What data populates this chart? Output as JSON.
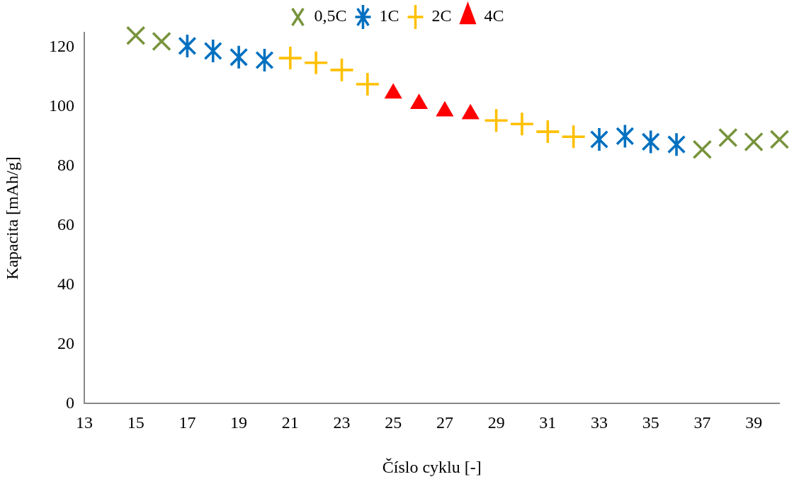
{
  "chart_data": {
    "type": "scatter",
    "xlabel": "Číslo cyklu [-]",
    "ylabel": "Kapacita [mAh/g]",
    "xlim": [
      13,
      40
    ],
    "xticks": [
      13,
      15,
      17,
      19,
      21,
      23,
      25,
      27,
      29,
      31,
      33,
      35,
      37,
      39
    ],
    "ylim": [
      0,
      125
    ],
    "yticks": [
      0,
      20,
      40,
      60,
      80,
      100,
      120
    ],
    "grid": false,
    "legend": "top",
    "series": [
      {
        "name": "0,5C",
        "color": "#77933c",
        "marker": "cross",
        "x": [
          15,
          16,
          37,
          38,
          39,
          40
        ],
        "values": [
          124,
          122,
          85.6,
          89.6,
          88.2,
          89
        ]
      },
      {
        "name": "1C",
        "color": "#0070c0",
        "marker": "star",
        "x": [
          17,
          18,
          19,
          20,
          33,
          34,
          35,
          36
        ],
        "values": [
          120.5,
          118.8,
          116.7,
          115.7,
          89,
          90.1,
          88.2,
          87.3
        ]
      },
      {
        "name": "2C",
        "color": "#ffc000",
        "marker": "plus",
        "x": [
          21,
          22,
          23,
          24,
          29,
          30,
          31,
          32
        ],
        "values": [
          116.4,
          114.8,
          112.4,
          107.6,
          95.4,
          94.2,
          91.6,
          89.9
        ]
      },
      {
        "name": "4C",
        "color": "#ff0000",
        "marker": "triangle",
        "x": [
          25,
          26,
          27,
          28
        ],
        "values": [
          104.5,
          101,
          98.5,
          97.5
        ]
      }
    ]
  }
}
